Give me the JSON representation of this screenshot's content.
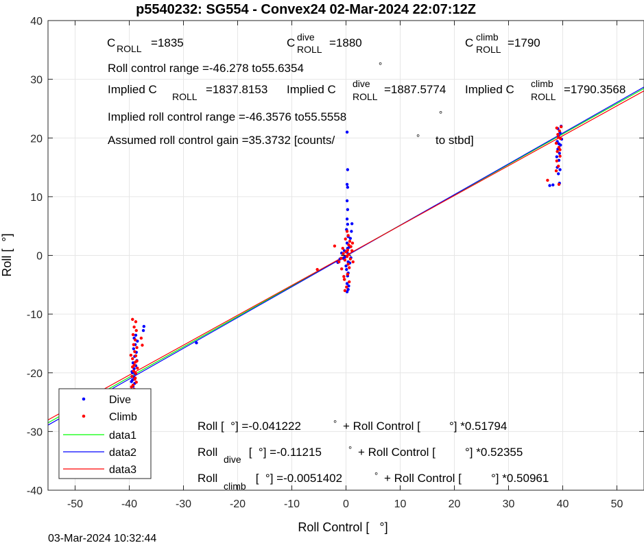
{
  "chart_data": {
    "type": "scatter",
    "title": "p5540232: SG554 - Convex24 02-Mar-2024 22:07:12Z",
    "xlabel": "Roll Control [   °]",
    "ylabel": "Roll [  °]",
    "xlim": [
      -55,
      55
    ],
    "ylim": [
      -40,
      40
    ],
    "xticks": [
      "-50",
      "-40",
      "-30",
      "-20",
      "-10",
      "0",
      "10",
      "20",
      "30",
      "40",
      "50"
    ],
    "yticks": [
      "-40",
      "-30",
      "-20",
      "-10",
      "0",
      "10",
      "20",
      "30",
      "40"
    ],
    "grid": true,
    "legend_position": "bottom-left",
    "legend": [
      "Dive",
      "Climb",
      "data1",
      "data2",
      "data3"
    ],
    "timestamp": "03-Mar-2024 10:32:44",
    "annotations": {
      "c_roll": {
        "base": "C",
        "sub": "ROLL",
        "value": "=1835"
      },
      "c_roll_dive": {
        "base": "C",
        "sup": "dive",
        "sub": "ROLL",
        "value": "=1880"
      },
      "c_roll_climb": {
        "base": "C",
        "sup": "climb",
        "sub": "ROLL",
        "value": "=1790"
      },
      "roll_range_text": "Roll control range =-46.278 to55.6354",
      "roll_range_deg": "°",
      "implied_1": {
        "pre": "Implied C",
        "sub": "ROLL",
        "value": "=1837.8153"
      },
      "implied_2": {
        "pre": "Implied C",
        "sup": "dive",
        "sub": "ROLL",
        "value": "=1887.5774"
      },
      "implied_3": {
        "pre": "Implied C",
        "sup": "climb",
        "sub": "ROLL",
        "value": "=1790.3568"
      },
      "implied_range_text": "Implied roll control range =-46.3576 to55.5558",
      "implied_range_deg": "°",
      "gain_text": "Assumed roll control gain =35.3732 [counts/",
      "gain_deg": "°",
      "gain_end": "to stbd]",
      "eq_all": {
        "a": "Roll [  °] =-0.041222",
        "b": "°",
        "c": "+ Roll Control [",
        "d": "°] *0.51794"
      },
      "eq_dive": {
        "pre": "Roll",
        "sub": "dive",
        "a": " [  °] =-0.11215",
        "b": "°",
        "c": "+ Roll Control [",
        "d": "°] *0.52355"
      },
      "eq_climb": {
        "pre": "Roll",
        "sub": "climb",
        "a": " [  °] =-0.0051402",
        "b": "°",
        "c": "+ Roll Control [",
        "d": "°] *0.50961"
      }
    },
    "series": [
      {
        "name": "Dive",
        "kind": "scatter",
        "color": "#0000ff",
        "points": [
          [
            -48.2,
            -24.6
          ],
          [
            -39.1,
            -23.1
          ],
          [
            -39.3,
            -22.3
          ],
          [
            -39.0,
            -21.8
          ],
          [
            -39.4,
            -21.2
          ],
          [
            -39.2,
            -20.7
          ],
          [
            -38.9,
            -20.2
          ],
          [
            -39.5,
            -19.8
          ],
          [
            -39.1,
            -19.3
          ],
          [
            -38.8,
            -18.8
          ],
          [
            -39.3,
            -18.3
          ],
          [
            -38.6,
            -17.9
          ],
          [
            -39.0,
            -17.2
          ],
          [
            -38.7,
            -16.5
          ],
          [
            -39.2,
            -15.9
          ],
          [
            -38.9,
            -15.2
          ],
          [
            -38.5,
            -14.6
          ],
          [
            -39.1,
            -14.1
          ],
          [
            -38.8,
            -13.6
          ],
          [
            -37.4,
            -12.8
          ],
          [
            -37.3,
            -12.1
          ],
          [
            -39.6,
            -21.5
          ],
          [
            -39.4,
            -20.0
          ],
          [
            -27.6,
            -14.9
          ],
          [
            -1.5,
            -1.2
          ],
          [
            -1.1,
            -0.6
          ],
          [
            -0.8,
            0.4
          ],
          [
            -0.2,
            -0.3
          ],
          [
            0.2,
            0.5
          ],
          [
            0.4,
            -1.1
          ],
          [
            0.1,
            -2.4
          ],
          [
            0.3,
            -3.5
          ],
          [
            0.2,
            -4.8
          ],
          [
            0.4,
            -5.8
          ],
          [
            0.2,
            -6.2
          ],
          [
            0.5,
            -5.2
          ],
          [
            0.0,
            -1.8
          ],
          [
            0.3,
            1.2
          ],
          [
            0.2,
            2.1
          ],
          [
            0.4,
            3.2
          ],
          [
            0.1,
            4.4
          ],
          [
            0.3,
            5.3
          ],
          [
            0.2,
            6.2
          ],
          [
            0.3,
            7.8
          ],
          [
            0.2,
            9.3
          ],
          [
            0.3,
            11.6
          ],
          [
            0.2,
            12.1
          ],
          [
            0.3,
            14.6
          ],
          [
            0.2,
            21.0
          ],
          [
            1.1,
            5.4
          ],
          [
            1.0,
            4.1
          ],
          [
            0.8,
            2.9
          ],
          [
            0.6,
            1.4
          ],
          [
            0.9,
            -0.4
          ],
          [
            0.7,
            -1.3
          ],
          [
            0.4,
            -3.0
          ],
          [
            -0.3,
            0.8
          ],
          [
            -0.5,
            -0.5
          ],
          [
            37.6,
            11.9
          ],
          [
            38.2,
            12.0
          ],
          [
            39.4,
            12.3
          ],
          [
            39.2,
            13.9
          ],
          [
            39.5,
            14.6
          ],
          [
            39.0,
            15.0
          ],
          [
            39.3,
            16.2
          ],
          [
            38.9,
            16.8
          ],
          [
            39.4,
            17.4
          ],
          [
            39.1,
            18.1
          ],
          [
            39.6,
            18.8
          ],
          [
            39.0,
            19.4
          ],
          [
            39.8,
            19.8
          ],
          [
            39.2,
            20.3
          ],
          [
            39.5,
            20.9
          ],
          [
            39.1,
            21.6
          ],
          [
            39.7,
            22.0
          ],
          [
            39.3,
            19.0
          ]
        ]
      },
      {
        "name": "Climb",
        "kind": "scatter",
        "color": "#ff0000",
        "points": [
          [
            -39.4,
            -10.9
          ],
          [
            -38.8,
            -11.3
          ],
          [
            -39.1,
            -12.2
          ],
          [
            -38.7,
            -12.8
          ],
          [
            -39.3,
            -13.5
          ],
          [
            -38.9,
            -14.4
          ],
          [
            -39.2,
            -15.2
          ],
          [
            -38.6,
            -15.7
          ],
          [
            -39.0,
            -16.4
          ],
          [
            -38.8,
            -17.1
          ],
          [
            -39.4,
            -17.6
          ],
          [
            -38.9,
            -18.2
          ],
          [
            -39.1,
            -18.7
          ],
          [
            -38.5,
            -19.2
          ],
          [
            -39.2,
            -19.7
          ],
          [
            -38.8,
            -20.1
          ],
          [
            -39.5,
            -20.6
          ],
          [
            -39.0,
            -21.1
          ],
          [
            -38.7,
            -21.6
          ],
          [
            -39.3,
            -22.1
          ],
          [
            -39.6,
            -22.4
          ],
          [
            -39.1,
            -22.8
          ],
          [
            -38.9,
            -20.9
          ],
          [
            -39.4,
            -19.0
          ],
          [
            -38.6,
            -18.0
          ],
          [
            -39.7,
            -17.0
          ],
          [
            -37.6,
            -15.3
          ],
          [
            -37.8,
            -14.1
          ],
          [
            -5.3,
            -2.4
          ],
          [
            -2.1,
            1.6
          ],
          [
            -1.3,
            -1.1
          ],
          [
            -0.9,
            -0.5
          ],
          [
            -0.5,
            0.3
          ],
          [
            -0.2,
            -0.8
          ],
          [
            0.0,
            0.6
          ],
          [
            0.2,
            -0.2
          ],
          [
            0.3,
            0.9
          ],
          [
            0.4,
            -1.5
          ],
          [
            0.5,
            1.8
          ],
          [
            0.6,
            -2.1
          ],
          [
            0.7,
            2.4
          ],
          [
            0.3,
            -3.2
          ],
          [
            -0.3,
            -4.1
          ],
          [
            0.1,
            -5.4
          ],
          [
            -0.2,
            -6.0
          ],
          [
            0.4,
            3.4
          ],
          [
            0.2,
            4.1
          ],
          [
            0.5,
            0.2
          ],
          [
            0.8,
            -0.6
          ],
          [
            1.1,
            0.8
          ],
          [
            1.2,
            2.1
          ],
          [
            -0.6,
            1.2
          ],
          [
            -0.8,
            -2.3
          ],
          [
            -0.4,
            -3.6
          ],
          [
            0.6,
            -4.5
          ],
          [
            0.9,
            1.5
          ],
          [
            1.3,
            -1.1
          ],
          [
            -0.1,
            2.8
          ],
          [
            37.2,
            12.8
          ],
          [
            39.3,
            12.1
          ],
          [
            38.8,
            14.4
          ],
          [
            39.2,
            15.2
          ],
          [
            38.9,
            16.1
          ],
          [
            39.5,
            16.9
          ],
          [
            39.0,
            17.7
          ],
          [
            39.3,
            18.4
          ],
          [
            38.8,
            19.1
          ],
          [
            39.6,
            19.9
          ],
          [
            39.1,
            20.6
          ],
          [
            39.4,
            21.2
          ],
          [
            38.9,
            21.7
          ],
          [
            39.7,
            21.9
          ],
          [
            39.2,
            20.1
          ],
          [
            39.5,
            18.0
          ]
        ]
      },
      {
        "name": "data1",
        "kind": "line",
        "color": "#00ff00",
        "x": [
          -55,
          55
        ],
        "y": [
          -28.53,
          28.44
        ]
      },
      {
        "name": "data2",
        "kind": "line",
        "color": "#0000ff",
        "x": [
          -55,
          55
        ],
        "y": [
          -28.91,
          28.68
        ]
      },
      {
        "name": "data3",
        "kind": "line",
        "color": "#ff0000",
        "x": [
          -55,
          55
        ],
        "y": [
          -28.03,
          28.02
        ]
      }
    ]
  }
}
